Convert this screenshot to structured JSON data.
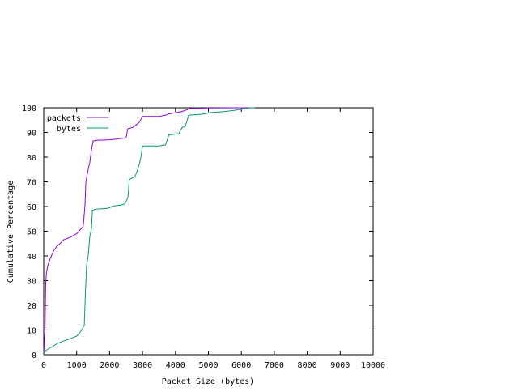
{
  "chart_data": {
    "type": "line",
    "xlabel": "Packet Size (bytes)",
    "ylabel": "Cumulative Percentage",
    "xlim": [
      0,
      10000
    ],
    "ylim": [
      0,
      100
    ],
    "xticks": [
      0,
      1000,
      2000,
      3000,
      4000,
      5000,
      6000,
      7000,
      8000,
      9000,
      10000
    ],
    "yticks": [
      0,
      10,
      20,
      30,
      40,
      50,
      60,
      70,
      80,
      90,
      100
    ],
    "grid": false,
    "legend_position": "top-left",
    "series": [
      {
        "name": "packets",
        "color": "#9400d3",
        "points": [
          [
            0,
            0
          ],
          [
            40,
            10
          ],
          [
            60,
            28
          ],
          [
            80,
            33
          ],
          [
            120,
            36
          ],
          [
            200,
            39
          ],
          [
            300,
            42
          ],
          [
            400,
            44
          ],
          [
            500,
            45
          ],
          [
            600,
            46.5
          ],
          [
            800,
            47.5
          ],
          [
            1000,
            49
          ],
          [
            1100,
            50.5
          ],
          [
            1200,
            52
          ],
          [
            1250,
            60
          ],
          [
            1280,
            70
          ],
          [
            1350,
            75
          ],
          [
            1400,
            78
          ],
          [
            1450,
            83
          ],
          [
            1500,
            86.5
          ],
          [
            1600,
            86.8
          ],
          [
            2000,
            87
          ],
          [
            2200,
            87.3
          ],
          [
            2500,
            87.8
          ],
          [
            2550,
            91.5
          ],
          [
            2700,
            92
          ],
          [
            2800,
            93
          ],
          [
            2900,
            94
          ],
          [
            3000,
            96.5
          ],
          [
            3500,
            96.5
          ],
          [
            3700,
            97
          ],
          [
            3800,
            97.5
          ],
          [
            4200,
            98.5
          ],
          [
            4300,
            99
          ],
          [
            4450,
            99.8
          ],
          [
            5000,
            99.9
          ],
          [
            6000,
            100
          ],
          [
            6300,
            100
          ]
        ]
      },
      {
        "name": "bytes",
        "color": "#009e73",
        "points": [
          [
            0,
            0
          ],
          [
            50,
            1.5
          ],
          [
            150,
            2.5
          ],
          [
            300,
            3.5
          ],
          [
            400,
            4.5
          ],
          [
            600,
            5.5
          ],
          [
            800,
            6.5
          ],
          [
            1000,
            7.5
          ],
          [
            1100,
            9
          ],
          [
            1200,
            11
          ],
          [
            1230,
            12
          ],
          [
            1260,
            23
          ],
          [
            1300,
            36
          ],
          [
            1350,
            40
          ],
          [
            1400,
            48
          ],
          [
            1450,
            51
          ],
          [
            1480,
            58.5
          ],
          [
            1600,
            59
          ],
          [
            1900,
            59.2
          ],
          [
            2000,
            59.5
          ],
          [
            2100,
            60.2
          ],
          [
            2300,
            60.5
          ],
          [
            2450,
            61
          ],
          [
            2500,
            62
          ],
          [
            2560,
            64
          ],
          [
            2600,
            71
          ],
          [
            2750,
            72
          ],
          [
            2800,
            73
          ],
          [
            2900,
            77
          ],
          [
            2950,
            80
          ],
          [
            3000,
            84.5
          ],
          [
            3500,
            84.5
          ],
          [
            3700,
            85
          ],
          [
            3800,
            89
          ],
          [
            4100,
            89.5
          ],
          [
            4200,
            92
          ],
          [
            4300,
            92.5
          ],
          [
            4400,
            97
          ],
          [
            4900,
            97.5
          ],
          [
            5000,
            98
          ],
          [
            5500,
            98.5
          ],
          [
            5800,
            99
          ],
          [
            6000,
            99.5
          ],
          [
            6300,
            100
          ],
          [
            6400,
            100
          ]
        ]
      }
    ]
  }
}
